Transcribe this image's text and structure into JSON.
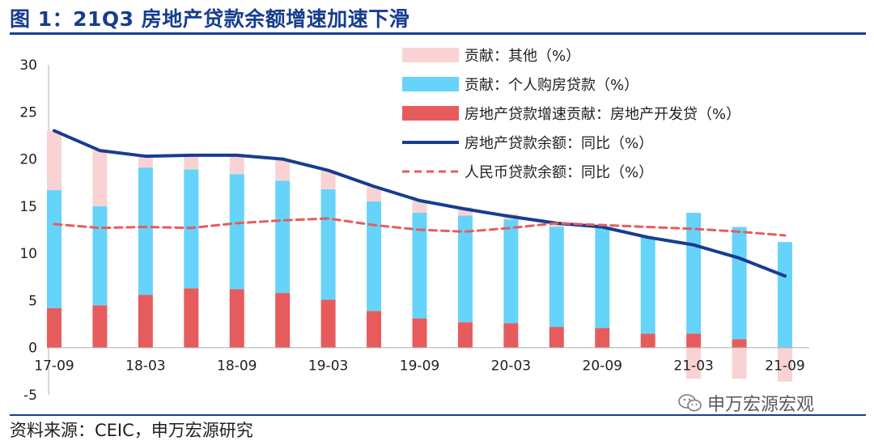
{
  "header": {
    "title": "图 1：21Q3 房地产贷款余额增速加速下滑"
  },
  "footer": {
    "source": "资料来源：CEIC，申万宏源研究",
    "watermark": "申万宏源宏观"
  },
  "colors": {
    "title": "#173d8f",
    "other": "#f9d3d3",
    "personal": "#66d3fa",
    "developer": "#e65c5c",
    "loan_balance_yoy": "#173d8f",
    "rmb_loan_yoy": "#e65c5c"
  },
  "chart_data": {
    "type": "bar",
    "stacked": true,
    "x": [
      "17-09",
      "17-12",
      "18-03",
      "18-06",
      "18-09",
      "18-12",
      "19-03",
      "19-06",
      "19-09",
      "19-12",
      "20-03",
      "20-06",
      "20-09",
      "20-12",
      "21-03",
      "21-06",
      "21-09"
    ],
    "x_tick_labels": [
      "17-09",
      "18-03",
      "18-09",
      "19-03",
      "19-09",
      "20-03",
      "20-09",
      "21-03",
      "21-09"
    ],
    "ylim": [
      -5,
      30
    ],
    "y_ticks": [
      -5,
      0,
      5,
      10,
      15,
      20,
      25,
      30
    ],
    "grid": false,
    "legend_position": "top-right",
    "series": [
      {
        "name": "房地产贷款增速贡献：房地产开发贷（%）",
        "kind": "bar",
        "values": [
          4.2,
          4.5,
          5.6,
          6.3,
          6.2,
          5.8,
          5.1,
          3.9,
          3.1,
          2.7,
          2.6,
          2.2,
          2.1,
          1.5,
          1.5,
          0.9,
          0.0
        ]
      },
      {
        "name": "贡献：个人购房贷款（%）",
        "kind": "bar",
        "values": [
          12.5,
          10.5,
          13.5,
          12.6,
          12.2,
          11.9,
          11.7,
          11.6,
          11.2,
          11.3,
          11.0,
          10.6,
          10.6,
          10.2,
          12.8,
          11.9,
          11.2
        ]
      },
      {
        "name": "贡献：其他（%）",
        "kind": "bar",
        "values": [
          6.3,
          5.9,
          1.2,
          1.5,
          2.0,
          2.3,
          2.0,
          1.6,
          1.3,
          0.9,
          0.6,
          0.4,
          0.1,
          0.0,
          -3.3,
          -3.3,
          -3.6
        ]
      },
      {
        "name": "房地产贷款余额：同比（%）",
        "kind": "line",
        "values": [
          23.0,
          20.9,
          20.3,
          20.4,
          20.4,
          20.0,
          18.8,
          17.1,
          15.6,
          14.7,
          13.9,
          13.2,
          12.8,
          11.7,
          10.9,
          9.5,
          7.6
        ]
      },
      {
        "name": "人民币贷款余额：同比（%）",
        "kind": "line",
        "dashed": true,
        "values": [
          13.1,
          12.7,
          12.8,
          12.7,
          13.2,
          13.5,
          13.7,
          13.0,
          12.5,
          12.3,
          12.7,
          13.2,
          13.0,
          12.8,
          12.6,
          12.3,
          11.9
        ]
      }
    ]
  }
}
